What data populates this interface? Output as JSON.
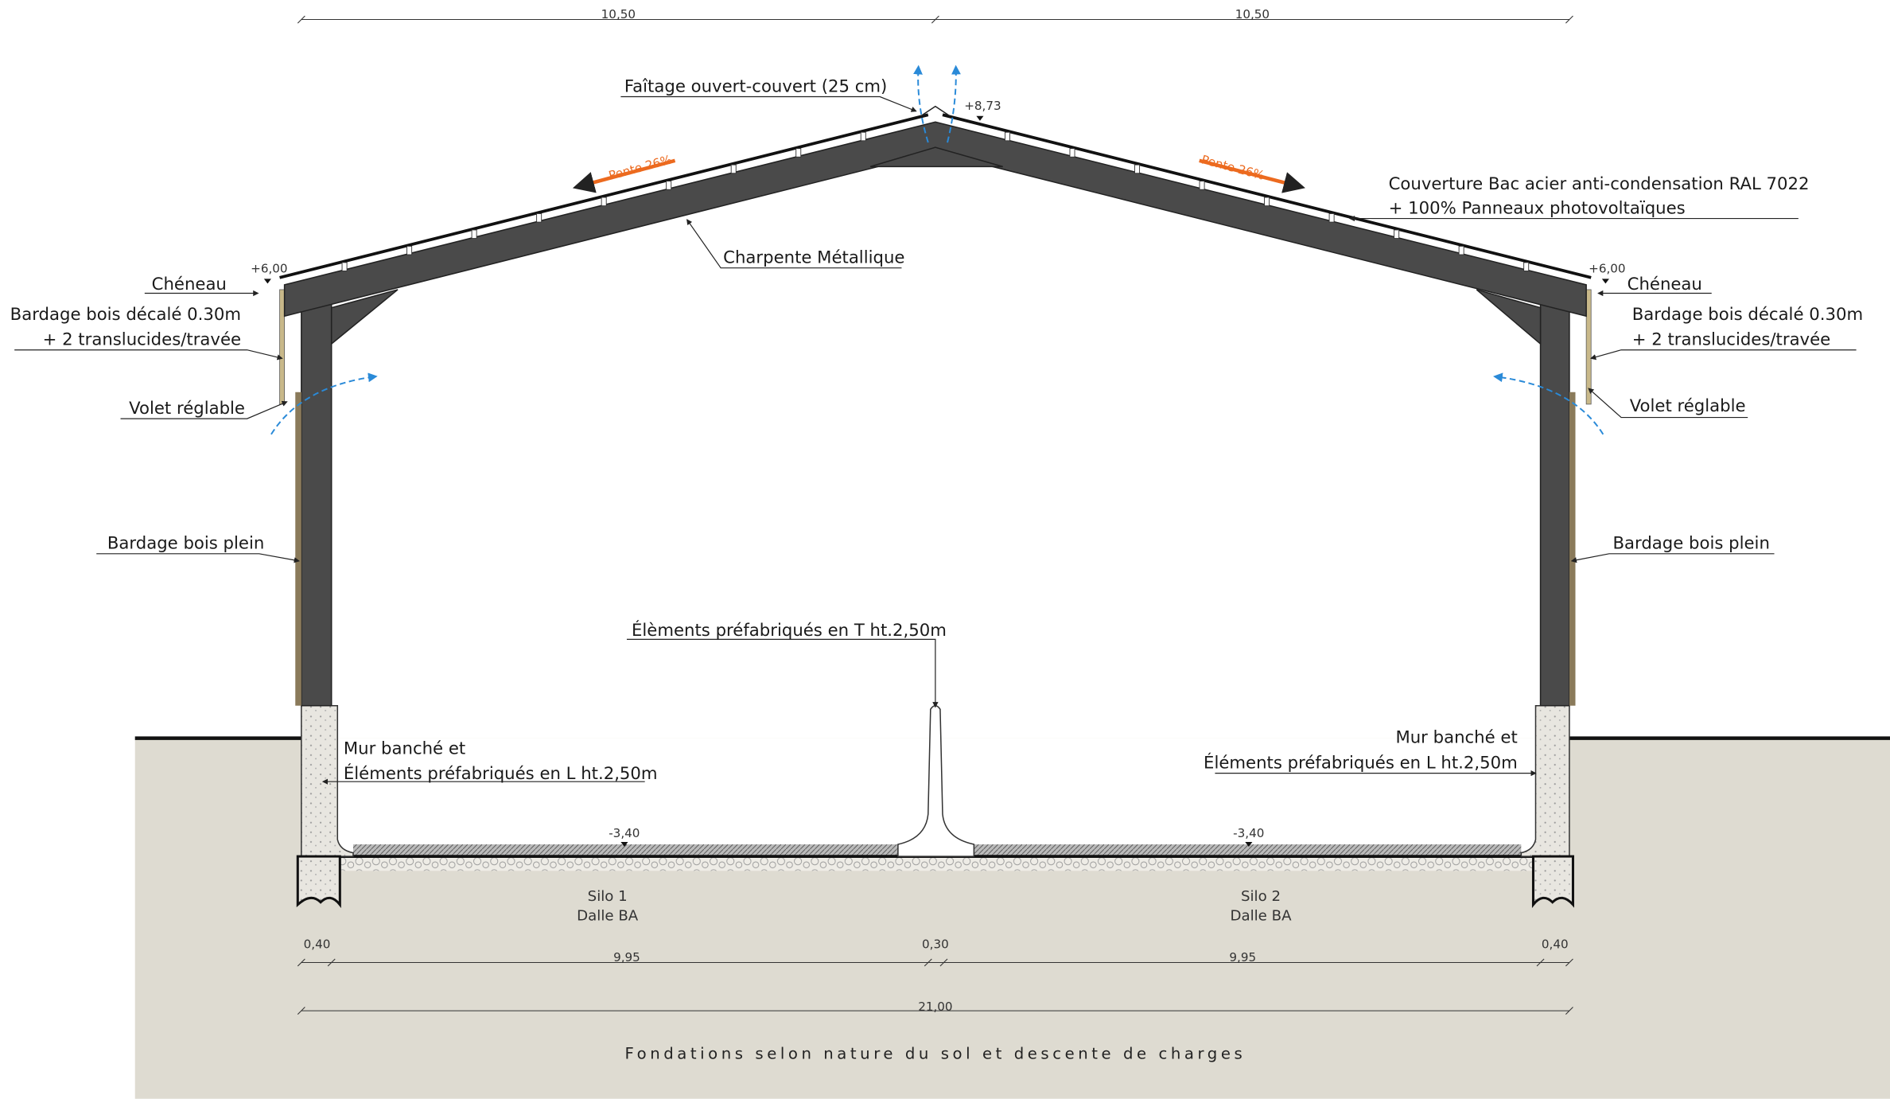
{
  "dimensions": {
    "top": [
      "10,50",
      "10,50"
    ],
    "bottom_row": [
      "0,40",
      "9,95",
      "0,30",
      "9,95",
      "0,40"
    ],
    "total": "21,00"
  },
  "levels": {
    "ridge": "+8,73",
    "eave_left": "+6,00",
    "eave_right": "+6,00",
    "floor_left": "-3,40",
    "floor_right": "-3,40"
  },
  "slopes": [
    "Pente 26%",
    "Pente 26%"
  ],
  "labels": {
    "ridge": "Faîtage ouvert-couvert (25 cm)",
    "roofing": [
      "Couverture Bac acier anti-condensation RAL 7022",
      "+ 100% Panneaux photovoltaïques"
    ],
    "frame": "Charpente Métallique",
    "gutter_left": "Chéneau",
    "gutter_right": "Chéneau",
    "cladding_offset_left": [
      "Bardage bois décalé 0.30m",
      "+ 2 translucides/travée"
    ],
    "cladding_offset_right": [
      "Bardage bois décalé 0.30m",
      "+ 2 translucides/travée"
    ],
    "shutter_left": "Volet réglable",
    "shutter_right": "Volet réglable",
    "cladding_solid_left": "Bardage bois plein",
    "cladding_solid_right": "Bardage bois plein",
    "t_elements": "Élèments préfabriqués en T ht.2,50m",
    "wall_left": [
      "Mur banché et",
      "Éléments préfabriqués en L ht.2,50m"
    ],
    "wall_right": [
      "Mur banché et",
      "Éléments préfabriqués en L ht.2,50m"
    ]
  },
  "silos": [
    {
      "name": "Silo 1",
      "slab": "Dalle BA"
    },
    {
      "name": "Silo 2",
      "slab": "Dalle BA"
    }
  ],
  "footer": "Fondations selon nature du sol et descente de charges"
}
